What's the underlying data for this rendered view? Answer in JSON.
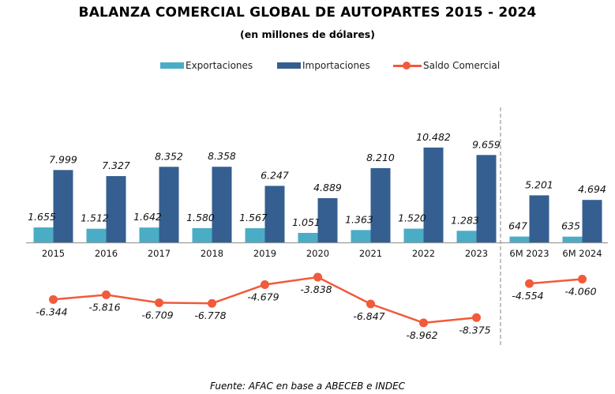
{
  "chart_data": {
    "type": "bar",
    "title": "BALANZA COMERCIAL GLOBAL DE AUTOPARTES 2015 - 2024",
    "subtitle": "(en millones de dólares)",
    "xlabel": "",
    "ylabel": "",
    "legend_position": "top",
    "grid": false,
    "categories": [
      "2015",
      "2016",
      "2017",
      "2018",
      "2019",
      "2020",
      "2021",
      "2022",
      "2023",
      "6M 2023",
      "6M 2024"
    ],
    "series": [
      {
        "name": "Exportaciones",
        "type": "bar",
        "color": "#4bacc6",
        "values": [
          1655,
          1512,
          1642,
          1580,
          1567,
          1051,
          1363,
          1520,
          1283,
          647,
          635
        ],
        "labels": [
          "1.655",
          "1.512",
          "1.642",
          "1.580",
          "1.567",
          "1.051",
          "1.363",
          "1.520",
          "1.283",
          "647",
          "635"
        ]
      },
      {
        "name": "Importaciones",
        "type": "bar",
        "color": "#355f91",
        "values": [
          7999,
          7327,
          8352,
          8358,
          6247,
          4889,
          8210,
          10482,
          9659,
          5201,
          4694
        ],
        "labels": [
          "7.999",
          "7.327",
          "8.352",
          "8.358",
          "6.247",
          "4.889",
          "8.210",
          "10.482",
          "9.659",
          "5.201",
          "4.694"
        ]
      },
      {
        "name": "Saldo Comercial",
        "type": "line",
        "color": "#f15a3a",
        "values": [
          -6344,
          -5816,
          -6709,
          -6778,
          -4679,
          -3838,
          -6847,
          -8962,
          -8375,
          -4554,
          -4060
        ],
        "labels": [
          "-6.344",
          "-5.816",
          "-6.709",
          "-6.778",
          "-4.679",
          "-3.838",
          "-6.847",
          "-8.962",
          "-8.375",
          "-4.554",
          "-4.060"
        ]
      }
    ],
    "separator_after_category": "2023",
    "source": "Fuente: AFAC en base a ABECEB e INDEC"
  }
}
